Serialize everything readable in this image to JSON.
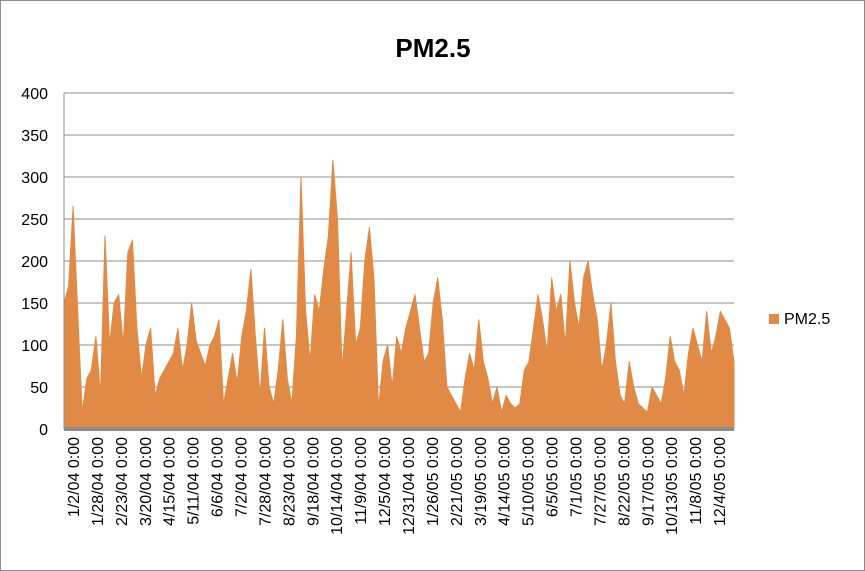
{
  "chart_data": {
    "type": "area",
    "title": "PM2.5",
    "xlabel": "",
    "ylabel": "",
    "ylim": [
      0,
      400
    ],
    "y_ticks": [
      0,
      50,
      100,
      150,
      200,
      250,
      300,
      350,
      400
    ],
    "grid": true,
    "legend_position": "right",
    "color": "#E08A45",
    "x_tick_labels": [
      "1/2/04 0:00",
      "1/28/04 0:00",
      "2/23/04 0:00",
      "3/20/04 0:00",
      "4/15/04 0:00",
      "5/11/04 0:00",
      "6/6/04 0:00",
      "7/2/04 0:00",
      "7/28/04 0:00",
      "8/23/04 0:00",
      "9/18/04 0:00",
      "10/14/04 0:00",
      "11/9/04 0:00",
      "12/5/04 0:00",
      "12/31/04 0:00",
      "1/26/05 0:00",
      "2/21/05 0:00",
      "3/19/05 0:00",
      "4/14/05 0:00",
      "5/10/05 0:00",
      "6/5/05 0:00",
      "7/1/05 0:00",
      "7/27/05 0:00",
      "8/22/05 0:00",
      "9/17/05 0:00",
      "10/13/05 0:00",
      "11/8/05 0:00",
      "12/4/05 0:00"
    ],
    "series": [
      {
        "name": "PM2.5",
        "x_start": "1/2/04 0:00",
        "x_step_days": 3,
        "values": [
          150,
          170,
          265,
          140,
          20,
          60,
          70,
          110,
          40,
          230,
          100,
          150,
          160,
          100,
          210,
          225,
          120,
          60,
          100,
          120,
          40,
          60,
          70,
          80,
          90,
          120,
          70,
          100,
          150,
          105,
          90,
          75,
          100,
          110,
          130,
          30,
          60,
          90,
          55,
          110,
          140,
          190,
          110,
          40,
          120,
          50,
          30,
          70,
          130,
          60,
          30,
          110,
          300,
          140,
          80,
          160,
          140,
          190,
          230,
          320,
          250,
          70,
          140,
          210,
          100,
          120,
          200,
          240,
          180,
          25,
          80,
          100,
          50,
          110,
          90,
          120,
          140,
          160,
          120,
          80,
          90,
          150,
          180,
          130,
          50,
          40,
          30,
          20,
          60,
          90,
          70,
          130,
          80,
          60,
          30,
          50,
          20,
          40,
          30,
          25,
          30,
          70,
          80,
          120,
          160,
          130,
          90,
          180,
          140,
          160,
          100,
          200,
          150,
          120,
          180,
          200,
          160,
          130,
          70,
          100,
          150,
          80,
          40,
          30,
          80,
          50,
          30,
          25,
          20,
          50,
          40,
          30,
          60,
          110,
          80,
          70,
          40,
          90,
          120,
          100,
          80,
          140,
          90,
          110,
          140,
          130,
          120,
          80
        ]
      }
    ]
  },
  "legend": {
    "entries": [
      {
        "label": "PM2.5",
        "color": "#E08A45"
      }
    ]
  }
}
